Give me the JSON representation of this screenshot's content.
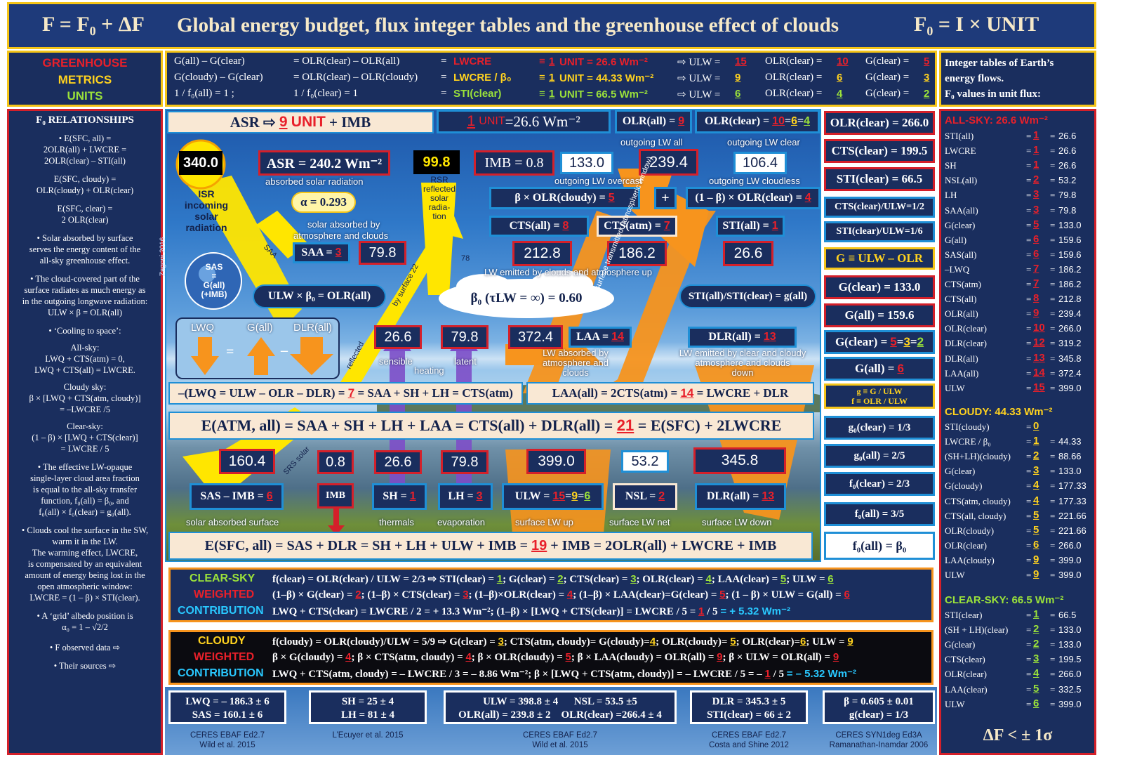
{
  "header": {
    "left": "F = F₀ + ΔF",
    "title": "Global energy budget, flux integer tables and the greenhouse effect of clouds",
    "right": "F₀ = I × UNIT"
  },
  "metrics_label": {
    "l1": "GREENHOUSE",
    "l2": "METRICS",
    "l3": "UNITS"
  },
  "top_rows": [
    {
      "a": "G(all) – G(clear)",
      "b": "= OLR(clear) – OLR(all)",
      "c": "=",
      "d": "LWCRE",
      "e": "≡",
      "f": "1",
      "g": "UNIT = 26.6 Wm⁻²",
      "h": "⇨ ULW =",
      "i": "15",
      "j": "OLR(clear) =",
      "k": "10",
      "l": "G(clear) =",
      "m": "5"
    },
    {
      "a": "G(cloudy) – G(clear)",
      "b": "= OLR(clear) – OLR(cloudy)",
      "c": "=",
      "d": "LWCRE / β₀",
      "e": "≡",
      "f": "1",
      "g": "UNIT = 44.33 Wm⁻²",
      "h": "⇨ ULW =",
      "i": "9",
      "j": "OLR(clear) =",
      "k": "6",
      "l": "G(clear) =",
      "m": "3"
    },
    {
      "a": "1 / f₀(all) = 1 ;",
      "b": "1 / f₀(clear) = 1",
      "c": "=",
      "d": "STI(clear)",
      "e": "≡",
      "f": "1",
      "g": "UNIT = 66.5 Wm⁻²",
      "h": "⇨ ULW =",
      "i": "6",
      "j": "OLR(clear) =",
      "k": "4",
      "l": "G(clear) =",
      "m": "2"
    }
  ],
  "right_head": {
    "l1": "Integer tables of Earth’s",
    "l2": "energy flows.",
    "l3": "F₀ values in unit flux:"
  },
  "left_panel": {
    "title": "F₀ RELATIONSHIPS",
    "lines": [
      "• E(SFC, all) =",
      "2OLR(all) + LWCRE =",
      "2OLR(clear) – STI(all)",
      "E(SFC, cloudy) =",
      "OLR(cloudy) + OLR(clear)",
      "E(SFC, clear) =",
      "2 OLR(clear)",
      "• Solar absorbed by surface",
      "serves the energy content of the",
      "all-sky greenhouse effect.",
      "• The cloud-covered part of the",
      "surface radiates as much energy as",
      "in the outgoing longwave radiation:",
      "ULW × β = OLR(all)",
      "• ‘Cooling to space’:",
      "All-sky:",
      "LWQ + CTS(atm) = 0,",
      "LWQ + CTS(all) = LWCRE.",
      "Cloudy sky:",
      "β × [LWQ + CTS(atm, cloudy)]",
      "= –LWCRE /5",
      "Clear-sky:",
      "(1 – β) × [LWQ + CTS(clear)]",
      "= LWCRE / 5",
      "• The effective LW-opaque",
      "single-layer cloud area fraction",
      "is equal to the all-sky transfer",
      "function, f₀(all) = β₀, and",
      "f₀(all) × f₀(clear) = g₀(all).",
      "• Clouds cool the surface in the SW,",
      "warm it in the LW.",
      "The warming effect, LWCRE,",
      "is compensated by an equivalent",
      "amount of energy being lost in the",
      "open atmospheric window:",
      "LWCRE = (1 – β) × STI(clear).",
      "• A ‘grid’ albedo position is",
      "α₀ = 1 – √2/2",
      "• F observed data  ⇨",
      "• Their sources   ⇨"
    ]
  },
  "diagram": {
    "asr_line": {
      "a": "ASR ⇨",
      "b": "9",
      "c": "UNIT",
      "d": "+ IMB"
    },
    "unit_box": {
      "a": "1",
      "b": "UNIT",
      "c": "=26.6 Wm⁻²"
    },
    "olr_all_box": {
      "a": "OLR(all) =",
      "b": "9"
    },
    "olr_clear_box": {
      "a": "OLR(clear) =",
      "b": "10",
      "c": "=",
      "d": "6",
      "e": "=",
      "f": "4"
    },
    "outgoing_all": "outgoing LW all",
    "outgoing_clear": "outgoing LW clear",
    "isr_value": "340.0",
    "isr_label": [
      "ISR",
      "incoming",
      "solar",
      "radiation"
    ],
    "asr_box": "ASR  =  240.2 Wm⁻²",
    "asr_label": "absorbed solar radiation",
    "rsr_value": "99.8",
    "rsr_label": [
      "RSR",
      "reflected",
      "solar",
      "radia-",
      "tion"
    ],
    "imb_box": "IMB = 0.8",
    "v133": "133.0",
    "v239": "239.4",
    "v106": "106.4",
    "overcast_label": "outgoing LW overcast",
    "cloudless_label": "outgoing LW cloudless",
    "alpha": "α = 0.293",
    "solar_abs_label": [
      "solar absorbed by",
      "atmosphere and clouds"
    ],
    "beta_olr_cloudy": {
      "a": "β × OLR(cloudy) =",
      "b": "5"
    },
    "plus": "+",
    "one_minus_beta": {
      "a": "(1 – β) × OLR(clear) =",
      "b": "4"
    },
    "cts_all": {
      "a": "CTS(all) =",
      "b": "8"
    },
    "cts_atm": {
      "a": "CTS(atm) =",
      "b": "7"
    },
    "sti_all": {
      "a": "STI(all) =",
      "b": "1"
    },
    "saa": {
      "a": "SAA =",
      "b": "3"
    },
    "v79_8a": "79.8",
    "v212": "212.8",
    "v186": "186.2",
    "v26_6a": "26.6",
    "lw_emitted_label": "LW emitted by clouds and atmosphere up",
    "saa_arrow": "SAA",
    "sas_bubble": [
      "SAS",
      "=",
      "G(all)",
      "(+IMB)"
    ],
    "credit": "Zagoni 2016",
    "ulw_beta": "ULW × β₀ = OLR(all)",
    "beta_cloud": "β₀ (τLW = ∞) = 0.60",
    "sti_ratio": "STI(all)/STI(clear) = g(all)",
    "v78": "78",
    "by_surface": "by surface 22",
    "reflected": "reflected",
    "window": "surface transmitted (atmospheric window)",
    "lwq_panel": {
      "a": "LWQ",
      "b": "G(all)",
      "c": "DLR(all)",
      "eq": "=",
      "minus": "–"
    },
    "v26_6b": "26.6",
    "v79_8b": "79.8",
    "v372": "372.4",
    "laa_box": {
      "a": "LAA =",
      "b": "14"
    },
    "dlr_box1": {
      "a": "DLR(all) =",
      "b": "13"
    },
    "sensible": "sensible",
    "heating": "heating",
    "latent": "latent",
    "lw_abs_label": [
      "LW absorbed by",
      "atmosphere and",
      "clouds"
    ],
    "dlr_label": [
      "LW emitted by clear and cloudy",
      "atmosphere and clouds",
      "down"
    ],
    "lwq_eq": {
      "a": "–(LWQ = ULW – OLR – DLR) =",
      "b": "7",
      "c": "= SAA + SH + LH = CTS(atm)"
    },
    "laa_eq": {
      "a": "LAA(all) = 2CTS(atm) =",
      "b": "14",
      "c": "= LWCRE + DLR"
    },
    "eatm": {
      "a": "E(ATM, all) = SAA + SH + LH + LAA = CTS(all) + DLR(all) =",
      "b": "21",
      "c": "= E(SFC) + 2LWCRE"
    },
    "v160": "160.4",
    "v0_8": "0.8",
    "v26_6c": "26.6",
    "v79_8c": "79.8",
    "v399": "399.0",
    "v53": "53.2",
    "v345": "345.8",
    "srs_solar": "SRS solar",
    "sas_imb": {
      "a": "SAS – IMB =",
      "b": "6"
    },
    "imb_small": "IMB",
    "sh": {
      "a": "SH =",
      "b": "1"
    },
    "lh": {
      "a": "LH =",
      "b": "3"
    },
    "ulw_box": {
      "a": "ULW =",
      "b": "15",
      "c": "=",
      "d": "9",
      "e": "=",
      "f": "6"
    },
    "nsl": {
      "a": "NSL =",
      "b": "2"
    },
    "dlr_all": {
      "a": "DLR(all) =",
      "b": "13"
    },
    "bottom_labels": [
      "solar absorbed surface",
      "thermals",
      "evaporation",
      "surface LW up",
      "surface LW net",
      "surface LW down"
    ],
    "esfc": {
      "a": "E(SFC, all) = SAS + DLR = SH + LH + ULW + IMB =",
      "b": "19",
      "c": "+ IMB = 2OLR(all) + LWCRE + IMB"
    }
  },
  "side_col": [
    {
      "t": "OLR(clear) = 266.0"
    },
    {
      "t": "CTS(clear) = 199.5"
    },
    {
      "t": "STI(clear) = 66.5"
    },
    {
      "t": "CTS(clear)/ULW=1/2"
    },
    {
      "t": "STI(clear)/ULW=1/6"
    },
    {
      "t": "G ≡ ULW – OLR"
    },
    {
      "t": "G(clear) = 133.0"
    },
    {
      "t": "G(all) = 159.6"
    },
    {
      "a": "G(clear) =",
      "b": "5",
      "c": "=",
      "d": "3",
      "e": "=",
      "f": "2"
    },
    {
      "a": "G(all) =",
      "b": "6"
    },
    {
      "a": "g ≡ G / ULW",
      "b": "f ≡ OLR / ULW"
    },
    {
      "t": "g₀(clear) = 1/3"
    },
    {
      "t": "g₀(all) = 2/5"
    },
    {
      "t": "f₀(clear) = 2/3"
    },
    {
      "t": "f₀(all) = 3/5"
    },
    {
      "t": "f₀(all) = β₀"
    }
  ],
  "right_panel": {
    "allsky_title": "ALL-SKY: 26.6 Wm⁻²",
    "allsky": [
      [
        "STI(all)",
        "1",
        "26.6"
      ],
      [
        "LWCRE",
        "1",
        "26.6"
      ],
      [
        "SH",
        "1",
        "26.6"
      ],
      [
        "NSL(all)",
        "2",
        "53.2"
      ],
      [
        "LH",
        "3",
        "79.8"
      ],
      [
        "SAA(all)",
        "3",
        "79.8"
      ],
      [
        "G(clear)",
        "5",
        "133.0"
      ],
      [
        "G(all)",
        "6",
        "159.6"
      ],
      [
        "SAS(all)",
        "6",
        "159.6"
      ],
      [
        "–LWQ",
        "7",
        "186.2"
      ],
      [
        "CTS(atm)",
        "7",
        "186.2"
      ],
      [
        "CTS(all)",
        "8",
        "212.8"
      ],
      [
        "OLR(all)",
        "9",
        "239.4"
      ],
      [
        "OLR(clear)",
        "10",
        "266.0"
      ],
      [
        "DLR(clear)",
        "12",
        "319.2"
      ],
      [
        "DLR(all)",
        "13",
        "345.8"
      ],
      [
        "LAA(all)",
        "14",
        "372.4"
      ],
      [
        "ULW",
        "15",
        "399.0"
      ]
    ],
    "cloudy_title": "CLOUDY: 44.33 Wm⁻²",
    "cloudy": [
      [
        "STI(cloudy)",
        "0",
        ""
      ],
      [
        "LWCRE / β₀",
        "1",
        "44.33"
      ],
      [
        "(SH+LH)(cloudy)",
        "2",
        "88.66"
      ],
      [
        "G(clear)",
        "3",
        "133.0"
      ],
      [
        "G(cloudy)",
        "4",
        "177.33"
      ],
      [
        "CTS(atm, cloudy)",
        "4",
        "177.33"
      ],
      [
        "CTS(all, cloudy)",
        "5",
        "221.66"
      ],
      [
        "OLR(cloudy)",
        "5",
        "221.66"
      ],
      [
        "OLR(clear)",
        "6",
        "266.0"
      ],
      [
        "LAA(cloudy)",
        "9",
        "399.0"
      ],
      [
        "ULW",
        "9",
        "399.0"
      ]
    ],
    "clear_title": "CLEAR-SKY: 66.5 Wm⁻²",
    "clear": [
      [
        "STI(clear)",
        "1",
        "66.5"
      ],
      [
        "(SH + LH)(clear)",
        "2",
        "133.0"
      ],
      [
        "G(clear)",
        "2",
        "133.0"
      ],
      [
        "CTS(clear)",
        "3",
        "199.5"
      ],
      [
        "OLR(clear)",
        "4",
        "266.0"
      ],
      [
        "LAA(clear)",
        "5",
        "332.5"
      ],
      [
        "ULW",
        "6",
        "399.0"
      ]
    ],
    "delta": "ΔF < ± 1σ"
  },
  "clear_contrib": {
    "l1": "CLEAR-SKY",
    "l2": "WEIGHTED",
    "l3": "CONTRIBUTION",
    "r1": [
      [
        "f(clear) = OLR(clear) / ULW = 2/3 ⇨ STI(clear) = ",
        ""
      ],
      [
        "1",
        "g"
      ],
      [
        "; G(clear) = ",
        ""
      ],
      [
        "2",
        "g"
      ],
      [
        "; CTS(clear) = ",
        ""
      ],
      [
        "3",
        "g"
      ],
      [
        "; OLR(clear) = ",
        ""
      ],
      [
        "4",
        "g"
      ],
      [
        "; LAA(clear) = ",
        ""
      ],
      [
        "5",
        "g"
      ],
      [
        "; ULW = ",
        ""
      ],
      [
        "6",
        "g"
      ]
    ],
    "r2": [
      [
        "(1–β) × G(clear) = ",
        ""
      ],
      [
        "2",
        "r"
      ],
      [
        "; (1–β) × CTS(clear) = ",
        ""
      ],
      [
        "3",
        "r"
      ],
      [
        "; (1–β)×OLR(clear) = ",
        ""
      ],
      [
        "4",
        "r"
      ],
      [
        "; (1–β) × LAA(clear)=G(clear) = ",
        ""
      ],
      [
        "5",
        "r"
      ],
      [
        "; (1 – β) × ULW = G(all) = ",
        ""
      ],
      [
        "6",
        "r"
      ]
    ],
    "r3": [
      [
        "LWQ + CTS(clear) = LWCRE / 2 = + 13.3 Wm⁻²; (1–β) × [LWQ + CTS(clear)] = LWCRE / 5 = ",
        ""
      ],
      [
        "1",
        "r"
      ],
      [
        " / 5 ",
        ""
      ],
      [
        "= + 5.32 Wm⁻²",
        "c"
      ]
    ]
  },
  "cloudy_contrib": {
    "l1": "CLOUDY",
    "l2": "WEIGHTED",
    "l3": "CONTRIBUTION",
    "r1": [
      [
        "f(cloudy) = OLR(cloudy)/ULW = 5/9 ⇨ G(clear) = ",
        ""
      ],
      [
        "3",
        "y"
      ],
      [
        "; CTS(atm, cloudy)= G(cloudy)=",
        ""
      ],
      [
        "4",
        "y"
      ],
      [
        "; OLR(cloudy)= ",
        ""
      ],
      [
        "5",
        "y"
      ],
      [
        "; OLR(clear)=",
        ""
      ],
      [
        "6",
        "y"
      ],
      [
        "; ULW = ",
        ""
      ],
      [
        "9",
        "y"
      ]
    ],
    "r2": [
      [
        "β × G(cloudy) = ",
        ""
      ],
      [
        "4",
        "r"
      ],
      [
        "; β × CTS(atm, cloudy) = ",
        ""
      ],
      [
        "4",
        "r"
      ],
      [
        "; β × OLR(cloudy) = ",
        ""
      ],
      [
        "5",
        "r"
      ],
      [
        "; β × LAA(cloudy) = OLR(all) = ",
        ""
      ],
      [
        "9",
        "r"
      ],
      [
        "; β × ULW = OLR(all) = ",
        ""
      ],
      [
        "9",
        "r"
      ]
    ],
    "r3": [
      [
        "LWQ + CTS(atm, cloudy) = – LWCRE / 3 = – 8.86 Wm⁻²; β × [LWQ + CTS(atm, cloudy)] = – LWCRE / 5 = – ",
        ""
      ],
      [
        "1",
        "r"
      ],
      [
        " / 5 ",
        ""
      ],
      [
        "= – 5.32 Wm⁻²",
        "c"
      ]
    ]
  },
  "obs_boxes": [
    {
      "l1": "LWQ = – 186.3 ± 6",
      "l2": "SAS = 160.1 ± 6",
      "s1": "CERES EBAF Ed2.7",
      "s2": "Wild et al. 2015"
    },
    {
      "l1": "SH = 25 ± 4",
      "l2": "LH = 81 ± 4",
      "s1": "L’Ecuyer et al. 2015",
      "s2": ""
    },
    {
      "l1": "ULW = 398.8 ± 4      NSL = 53.5 ±5",
      "l2": "OLR(all) = 239.8 ± 2    OLR(clear) =266.4 ± 4",
      "s1": "CERES EBAF Ed2.7",
      "s2": "Wild et al. 2015"
    },
    {
      "l1": "DLR = 345.3 ± 5",
      "l2": "STI(clear) = 66 ± 2",
      "s1": "CERES EBAF Ed2.7",
      "s2": "Costa and Shine 2012"
    },
    {
      "l1": "β = 0.605 ± 0.01",
      "l2": "g(clear) = 1/3",
      "s1": "CERES SYN1deg Ed3A",
      "s2": "Ramanathan-Inamdar 2006"
    }
  ],
  "colors": {
    "navy": "#1a2e5e",
    "blue_border": "#1f8fd6",
    "red": "#e8202a",
    "yellow": "#ffd21f",
    "green": "#9be23a",
    "orange": "#f7941d",
    "cyan": "#29c8ff"
  }
}
